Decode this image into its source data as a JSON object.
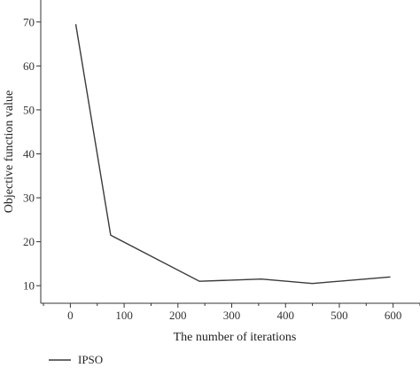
{
  "chart_data": {
    "type": "line",
    "title": "",
    "xlabel": "The number of iterations",
    "ylabel": "Objective function value",
    "xlim": [
      -55,
      650
    ],
    "ylim": [
      6,
      75
    ],
    "xticks": [
      0,
      100,
      200,
      300,
      400,
      500,
      600
    ],
    "yticks": [
      10,
      20,
      30,
      40,
      50,
      60,
      70
    ],
    "grid": false,
    "legend_position": "bottom-left",
    "series": [
      {
        "name": "IPSO",
        "color": "#3a3a3a",
        "x": [
          10,
          75,
          240,
          355,
          450,
          595
        ],
        "y": [
          69.5,
          21.5,
          11,
          11.5,
          10.5,
          12
        ]
      }
    ]
  }
}
